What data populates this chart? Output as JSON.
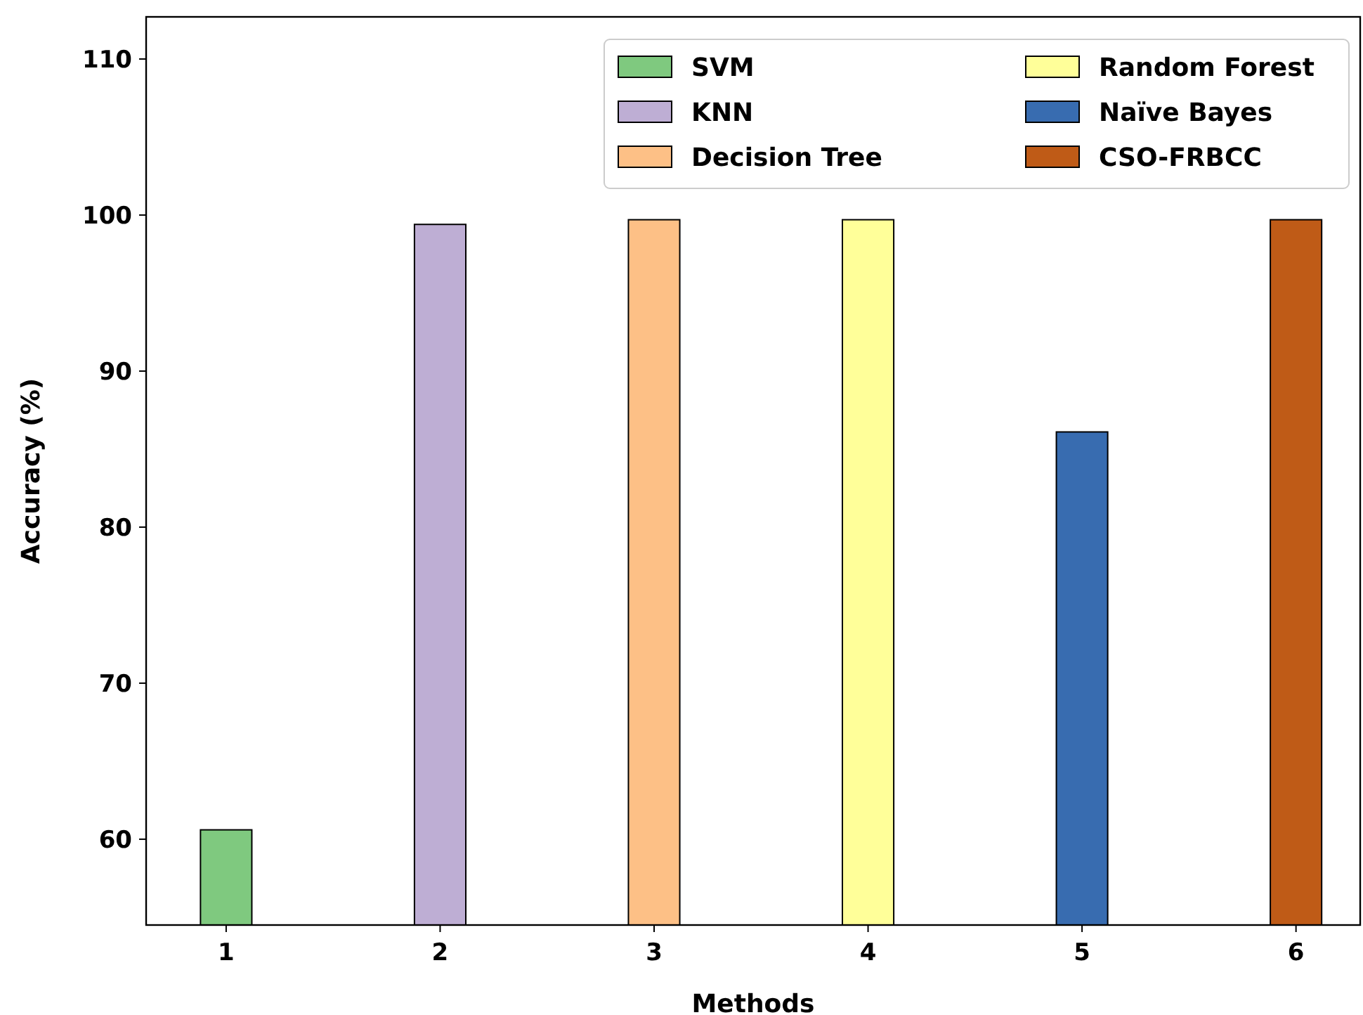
{
  "chart_data": {
    "type": "bar",
    "xlabel": "Methods",
    "ylabel": "Accuracy (%)",
    "xlim": [
      0.626,
      6.3
    ],
    "xticks": [
      1,
      2,
      3,
      4,
      5,
      6
    ],
    "ylim": [
      54.5,
      112.7
    ],
    "yticks": [
      60,
      70,
      80,
      90,
      100,
      110
    ],
    "grid": false,
    "legend": "top right",
    "series": [
      {
        "name": "SVM",
        "color": "#7fc97f",
        "x": [
          1
        ],
        "values": [
          60.6
        ]
      },
      {
        "name": "KNN",
        "color": "#beaed4",
        "x": [
          2
        ],
        "values": [
          99.4
        ]
      },
      {
        "name": "Decision Tree",
        "color": "#fdc086",
        "x": [
          3
        ],
        "values": [
          99.7
        ]
      },
      {
        "name": "Random Forest",
        "color": "#ffff99",
        "x": [
          4
        ],
        "values": [
          99.7
        ]
      },
      {
        "name": "Naïve Bayes",
        "color": "#386cb0",
        "x": [
          5
        ],
        "values": [
          86.1
        ]
      },
      {
        "name": "CSO-FRBCC",
        "color": "#bf5b17",
        "x": [
          6
        ],
        "values": [
          99.7
        ]
      }
    ]
  }
}
